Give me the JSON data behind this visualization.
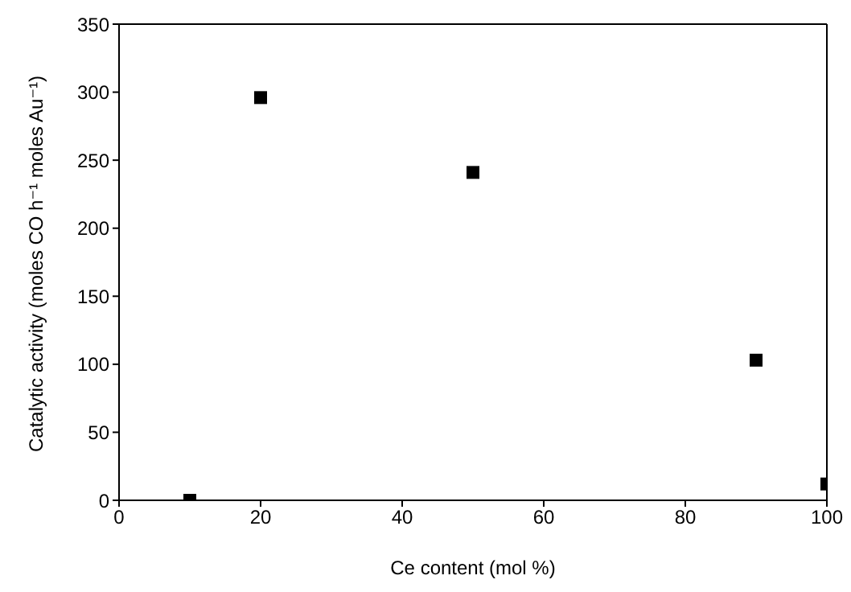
{
  "chart_data": {
    "type": "scatter",
    "xlabel": "Ce content (mol %)",
    "ylabel": "Catalytic activity (moles CO h⁻¹ moles Au⁻¹)",
    "x": [
      10,
      20,
      50,
      90,
      100
    ],
    "series": [
      {
        "color": "#000000",
        "values": [
          0,
          296,
          241,
          103,
          12
        ]
      }
    ],
    "xlim": [
      0,
      100
    ],
    "xticks": [
      0,
      20,
      40,
      60,
      80,
      100
    ],
    "ylim": [
      0,
      350
    ],
    "yticks": [
      0,
      50,
      100,
      150,
      200,
      250,
      300,
      350
    ],
    "marker": "square"
  }
}
